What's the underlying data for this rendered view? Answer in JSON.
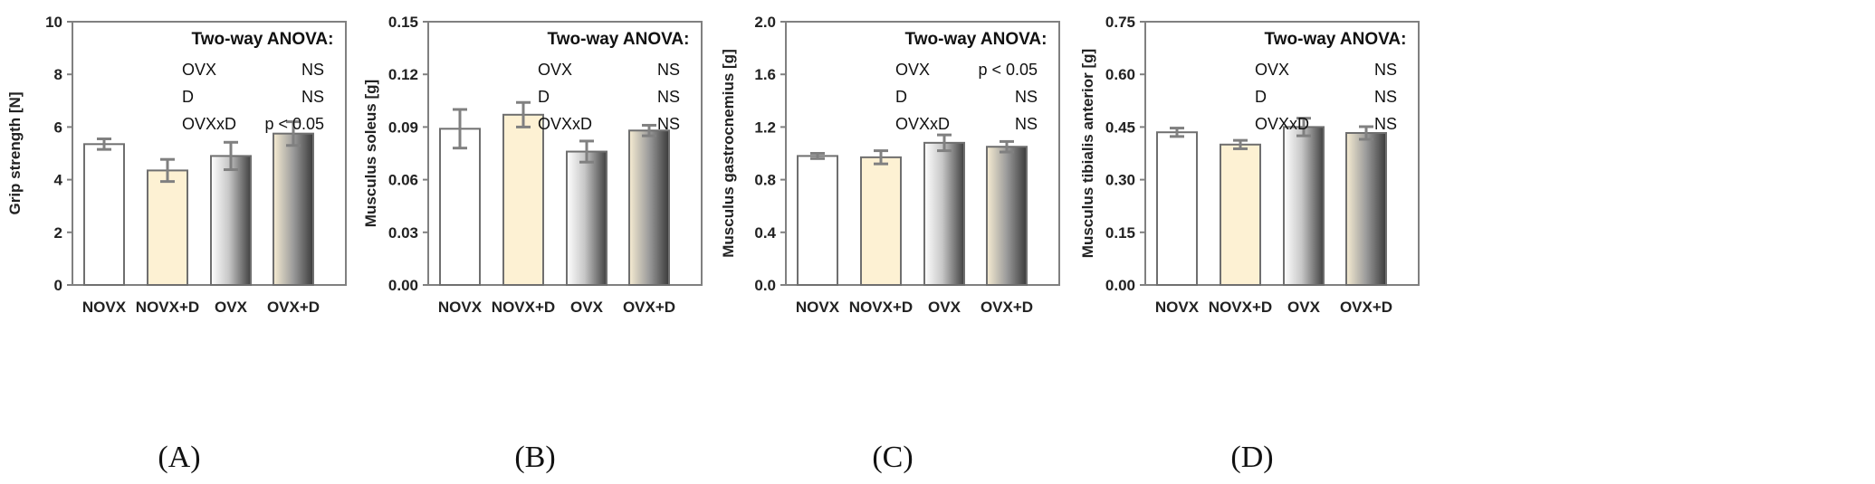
{
  "colors": {
    "frame": "#808080",
    "bar_stroke": "#6f6f6f",
    "error_bar": "#808080",
    "novx_fill": "#ffffff",
    "novx_d_fill": "#fdf1d3",
    "ovx_gradient": [
      "#ffffff",
      "#c7c7c7",
      "#404040"
    ],
    "ovx_d_gradient": [
      "#f6ecd2",
      "#9b9b9b",
      "#3a3a3a"
    ]
  },
  "chart_data": [
    {
      "type": "bar",
      "panel": "(A)",
      "panel_letter": "A",
      "ylabel": "Grip strength [N]",
      "ylim": [
        0,
        10
      ],
      "yticks": [
        "0",
        "2",
        "4",
        "6",
        "8",
        "10"
      ],
      "categories": [
        "NOVX",
        "NOVX+D",
        "OVX",
        "OVX+D"
      ],
      "values": [
        5.35,
        4.35,
        4.9,
        5.75
      ],
      "errors": [
        0.2,
        0.42,
        0.52,
        0.45
      ],
      "stats": {
        "title": "Two-way ANOVA:",
        "rows": [
          {
            "factor": "OVX",
            "result": "NS"
          },
          {
            "factor": "D",
            "result": "NS"
          },
          {
            "factor": "OVXxD",
            "result": "p < 0.05"
          }
        ]
      }
    },
    {
      "type": "bar",
      "panel": "(B)",
      "panel_letter": "B",
      "ylabel": "Musculus soleus [g]",
      "ylim": [
        0,
        0.15
      ],
      "yticks": [
        "0.00",
        "0.03",
        "0.06",
        "0.09",
        "0.12",
        "0.15"
      ],
      "categories": [
        "NOVX",
        "NOVX+D",
        "OVX",
        "OVX+D"
      ],
      "values": [
        0.089,
        0.097,
        0.076,
        0.088
      ],
      "errors": [
        0.011,
        0.007,
        0.006,
        0.003
      ],
      "stats": {
        "title": "Two-way ANOVA:",
        "rows": [
          {
            "factor": "OVX",
            "result": "NS"
          },
          {
            "factor": "D",
            "result": "NS"
          },
          {
            "factor": "OVXxD",
            "result": "NS"
          }
        ]
      }
    },
    {
      "type": "bar",
      "panel": "(C)",
      "panel_letter": "C",
      "ylabel": "Musculus gastrocnemius [g]",
      "ylim": [
        0,
        2.0
      ],
      "yticks": [
        "0.0",
        "0.4",
        "0.8",
        "1.2",
        "1.6",
        "2.0"
      ],
      "categories": [
        "NOVX",
        "NOVX+D",
        "OVX",
        "OVX+D"
      ],
      "values": [
        0.98,
        0.97,
        1.08,
        1.05
      ],
      "errors": [
        0.02,
        0.05,
        0.06,
        0.04
      ],
      "stats": {
        "title": "Two-way ANOVA:",
        "rows": [
          {
            "factor": "OVX",
            "result": "p < 0.05"
          },
          {
            "factor": "D",
            "result": "NS"
          },
          {
            "factor": "OVXxD",
            "result": "NS"
          }
        ]
      }
    },
    {
      "type": "bar",
      "panel": "(D)",
      "panel_letter": "D",
      "ylabel": "Musculus tibialis anterior [g]",
      "ylim": [
        0,
        0.75
      ],
      "yticks": [
        "0.00",
        "0.15",
        "0.30",
        "0.45",
        "0.60",
        "0.75"
      ],
      "categories": [
        "NOVX",
        "NOVX+D",
        "OVX",
        "OVX+D"
      ],
      "values": [
        0.435,
        0.4,
        0.45,
        0.433
      ],
      "errors": [
        0.012,
        0.012,
        0.025,
        0.018
      ],
      "stats": {
        "title": "Two-way ANOVA:",
        "rows": [
          {
            "factor": "OVX",
            "result": "NS"
          },
          {
            "factor": "D",
            "result": "NS"
          },
          {
            "factor": "OVXxD",
            "result": "NS"
          }
        ]
      }
    }
  ]
}
